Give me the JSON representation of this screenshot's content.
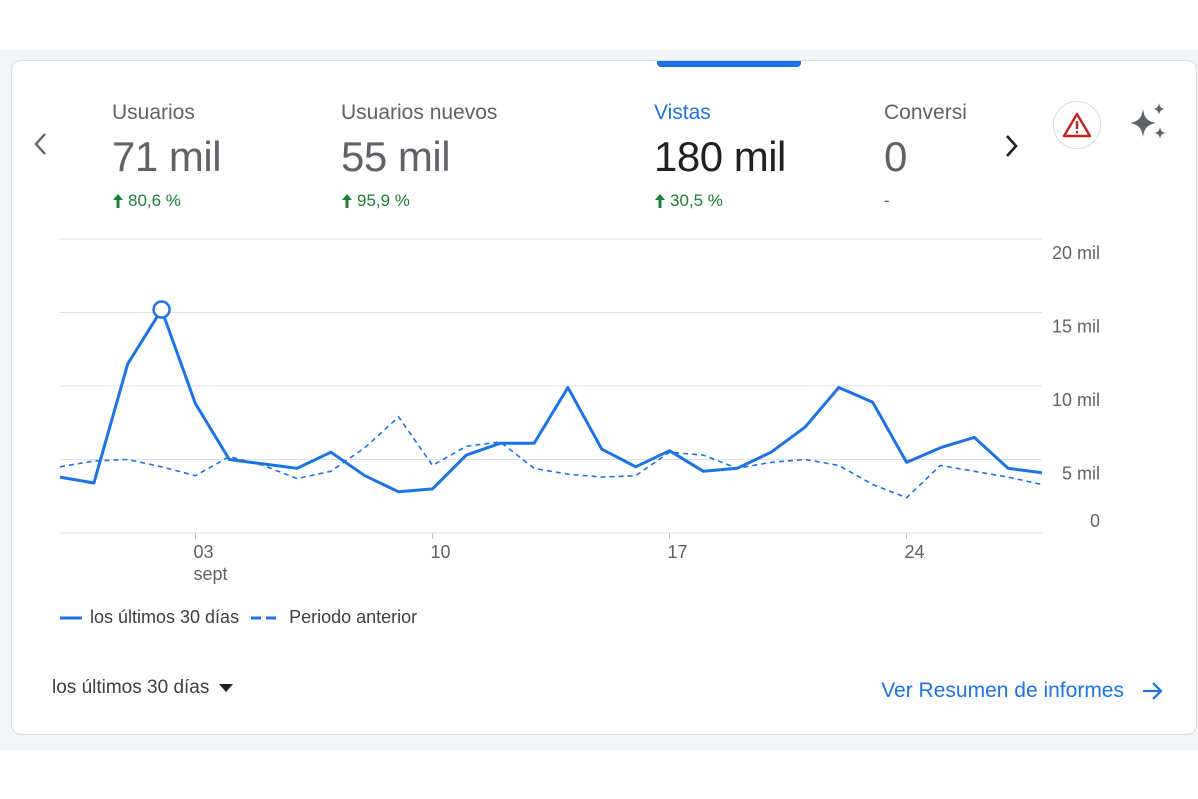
{
  "metrics": [
    {
      "label": "Usuarios",
      "value": "71 mil",
      "change": "80,6 %",
      "trend": "up"
    },
    {
      "label": "Usuarios nuevos",
      "value": "55 mil",
      "change": "95,9 %",
      "trend": "up"
    },
    {
      "label": "Vistas",
      "value": "180 mil",
      "change": "30,5 %",
      "trend": "up"
    },
    {
      "label": "Conversi",
      "value": "0",
      "change": "-",
      "trend": "none"
    }
  ],
  "icons": {
    "prev": "chevron-left-icon",
    "next": "chevron-right-icon",
    "warning": "warning-icon",
    "insights": "sparkle-icon",
    "dropdown": "caret-down-icon",
    "link_arrow": "arrow-right-icon"
  },
  "colors": {
    "primary": "#1a73e8",
    "positive": "#188038",
    "warning": "#c5221f"
  },
  "chart_data": {
    "type": "line",
    "y_ticks": [
      "20 mil",
      "15 mil",
      "10 mil",
      "5 mil",
      "0"
    ],
    "y_tick_values": [
      20000,
      15000,
      10000,
      5000,
      0
    ],
    "ylim": [
      0,
      20000
    ],
    "x_ticks": [
      {
        "day": 3,
        "label": "03",
        "sublabel": "sept"
      },
      {
        "day": 10,
        "label": "10",
        "sublabel": ""
      },
      {
        "day": 17,
        "label": "17",
        "sublabel": ""
      },
      {
        "day": 24,
        "label": "24",
        "sublabel": ""
      }
    ],
    "x_days": [
      -1,
      0,
      1,
      2,
      3,
      4,
      5,
      6,
      7,
      8,
      9,
      10,
      11,
      12,
      13,
      14,
      15,
      16,
      17,
      18,
      19,
      20,
      21,
      22,
      23,
      24,
      25,
      26,
      27,
      28
    ],
    "series": [
      {
        "name": "los últimos 30 días",
        "style": "solid",
        "values": [
          3800,
          3400,
          11500,
          15200,
          8800,
          5000,
          4700,
          4400,
          5500,
          3900,
          2800,
          3000,
          5300,
          6100,
          6100,
          9900,
          5700,
          4500,
          5600,
          4200,
          4400,
          5500,
          7200,
          9900,
          8900,
          4800,
          5800,
          6500,
          4400,
          4100
        ],
        "highlight_index": 3
      },
      {
        "name": "Periodo anterior",
        "style": "dashed",
        "values": [
          4500,
          4900,
          5000,
          4500,
          3900,
          5200,
          4600,
          3700,
          4200,
          5800,
          7900,
          4600,
          5900,
          6200,
          4400,
          4000,
          3800,
          3900,
          5500,
          5300,
          4400,
          4800,
          5000,
          4600,
          3300,
          2400,
          4600,
          4200,
          3800,
          3300
        ]
      }
    ]
  },
  "legend": {
    "current": "los últimos 30 días",
    "previous": "Periodo anterior"
  },
  "footer": {
    "date_range": "los últimos 30 días",
    "report_link": "Ver Resumen de informes"
  }
}
